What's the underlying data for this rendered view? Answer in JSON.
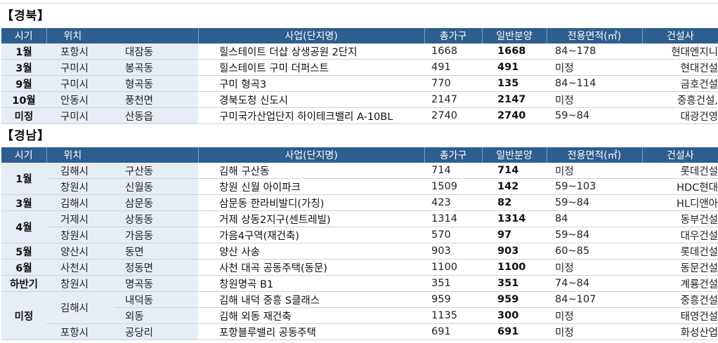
{
  "columns": [
    "시기",
    "위치",
    "사업(단지명)",
    "총가구",
    "일반분양",
    "전용면적(㎡)",
    "건설사"
  ],
  "sections": [
    {
      "title": "【경북】",
      "rows": [
        {
          "period": "1월",
          "city": "포항시",
          "dong": "대잠동",
          "project": "힐스테이트 더샵 상생공원 2단지",
          "total": "1668",
          "general": "1668",
          "area": "84~178",
          "builder": "현대엔지니"
        },
        {
          "period": "3월",
          "city": "구미시",
          "dong": "봉곡동",
          "project": "힐스테이트 구미 더퍼스트",
          "total": "491",
          "general": "491",
          "area": "미정",
          "builder": "현대건설"
        },
        {
          "period": "9월",
          "city": "구미시",
          "dong": "형곡동",
          "project": "구미 형곡3",
          "total": "770",
          "general": "135",
          "area": "84~114",
          "builder": "금호건설"
        },
        {
          "period": "10월",
          "city": "안동시",
          "dong": "풍천면",
          "project": "경북도청 신도시",
          "total": "2147",
          "general": "2147",
          "area": "미정",
          "builder": "중흥건설,"
        },
        {
          "period": "미정",
          "city": "구미시",
          "dong": "산동읍",
          "project": "구미국가산업단지 하이테크밸리 A-10BL",
          "total": "2740",
          "general": "2740",
          "area": "59~84",
          "builder": "대광건영"
        }
      ]
    },
    {
      "title": "【경남】",
      "rows": [
        {
          "period": "1월",
          "city": "김해시",
          "dong": "구산동",
          "project": "김해 구산동",
          "total": "714",
          "general": "714",
          "area": "미정",
          "builder": "롯데건설"
        },
        {
          "period": "",
          "city": "창원시",
          "dong": "신월동",
          "project": "창원 신월 아이파크",
          "total": "1509",
          "general": "142",
          "area": "59~103",
          "builder": "HDC현대"
        },
        {
          "period": "3월",
          "city": "김해시",
          "dong": "삼문동",
          "project": "삼문동 한라비발디(가칭)",
          "total": "423",
          "general": "82",
          "area": "59~84",
          "builder": "HL디앤아"
        },
        {
          "period": "4월",
          "city": "거제시",
          "dong": "상동동",
          "project": "거제 상동2지구(센트레빌)",
          "total": "1314",
          "general": "1314",
          "area": "84",
          "builder": "동부건설"
        },
        {
          "period": "",
          "city": "창원시",
          "dong": "가음동",
          "project": "가음4구역(재건축)",
          "total": "570",
          "general": "97",
          "area": "59~84",
          "builder": "대우건설"
        },
        {
          "period": "5월",
          "city": "양산시",
          "dong": "동면",
          "project": "양산 사송",
          "total": "903",
          "general": "903",
          "area": "60~85",
          "builder": "롯데건설"
        },
        {
          "period": "6월",
          "city": "사천시",
          "dong": "정동면",
          "project": "사천 대곡 공동주택(동문)",
          "total": "1100",
          "general": "1100",
          "area": "미정",
          "builder": "동문건설"
        },
        {
          "period": "하반기",
          "city": "창원시",
          "dong": "명곡동",
          "project": "창원명곡 B1",
          "total": "351",
          "general": "351",
          "area": "74~84",
          "builder": "계룡건설"
        },
        {
          "period": "미정",
          "city": "김해시",
          "dong": "내덕동",
          "project": "김해 내덕 중흥 S클래스",
          "total": "959",
          "general": "959",
          "area": "84~107",
          "builder": "중흥건설"
        },
        {
          "period": "",
          "city": "",
          "dong": "외동",
          "project": "김해 외동 재건축",
          "total": "1135",
          "general": "300",
          "area": "미정",
          "builder": "태영건설"
        },
        {
          "period": "",
          "city": "포항시",
          "dong": "공당리",
          "project": "포항블루밸리 공동주택",
          "total": "691",
          "general": "691",
          "area": "미정",
          "builder": "화성산업"
        }
      ]
    }
  ]
}
